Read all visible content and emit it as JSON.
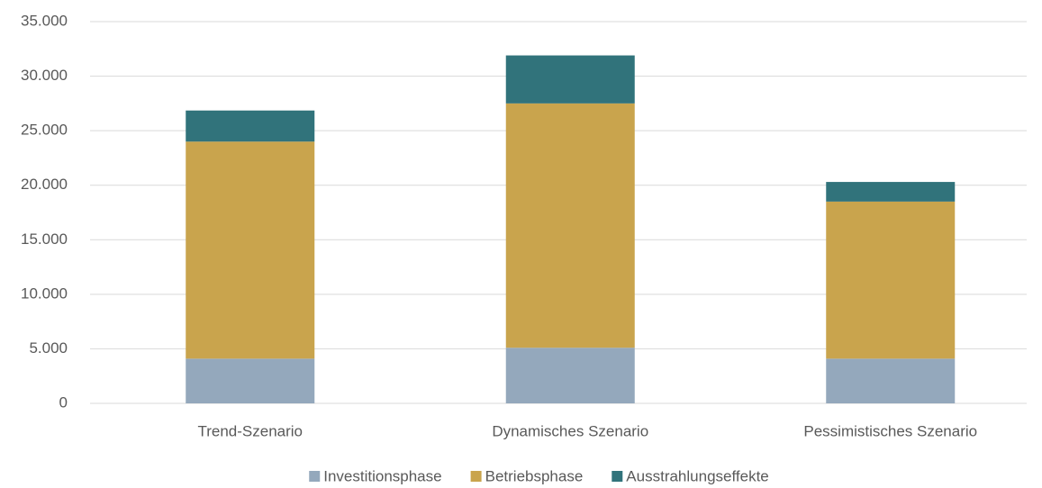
{
  "chart_data": {
    "type": "stacked_bar",
    "categories": [
      "Trend-Szenario",
      "Dynamisches Szenario",
      "Pessimistisches Szenario"
    ],
    "series": [
      {
        "name": "Investitionsphase",
        "color": "#94a8bc",
        "values": [
          4100,
          5100,
          4100
        ]
      },
      {
        "name": "Betriebsphase",
        "color": "#c9a44d",
        "values": [
          19900,
          22400,
          14400
        ]
      },
      {
        "name": "Ausstrahlungseffekte",
        "color": "#31737b",
        "values": [
          2850,
          4400,
          1800
        ]
      }
    ],
    "ylim": [
      0,
      35000
    ],
    "yticks": [
      0,
      {
        "value": 5000,
        "label": "5.000"
      },
      {
        "value": 10000,
        "label": "10.000"
      },
      {
        "value": 15000,
        "label": "15.000"
      },
      {
        "value": 20000,
        "label": "20.000"
      },
      {
        "value": 25000,
        "label": "25.000"
      },
      {
        "value": 30000,
        "label": "30.000"
      },
      {
        "value": 35000,
        "label": "35.000"
      }
    ],
    "grid": true,
    "legend": "bottom"
  }
}
